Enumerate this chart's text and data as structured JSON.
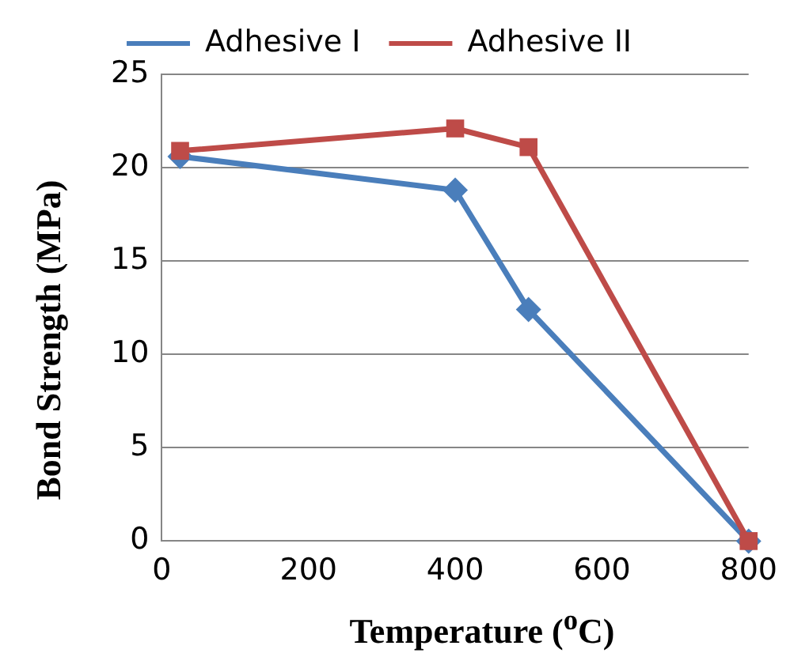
{
  "chart_data": {
    "type": "line",
    "xlabel": "Temperature ($^{o}$C)",
    "ylabel": "Bond Strength (MPa)",
    "xlim": [
      0,
      800
    ],
    "xticks": [
      0,
      200,
      400,
      600,
      800
    ],
    "ylim": [
      0,
      25
    ],
    "yticks": [
      0,
      5,
      10,
      15,
      20,
      25
    ],
    "grid": "y",
    "legend": "top",
    "series": [
      {
        "name": "Adhesive I",
        "color": "#4a7ebb",
        "marker": "diamond",
        "x": [
          25,
          400,
          500,
          800
        ],
        "values": [
          20.6,
          18.8,
          12.4,
          0
        ]
      },
      {
        "name": "Adhesive II",
        "color": "#be4b48",
        "marker": "square",
        "x": [
          25,
          400,
          500,
          800
        ],
        "values": [
          20.9,
          22.1,
          21.1,
          0
        ]
      }
    ]
  }
}
